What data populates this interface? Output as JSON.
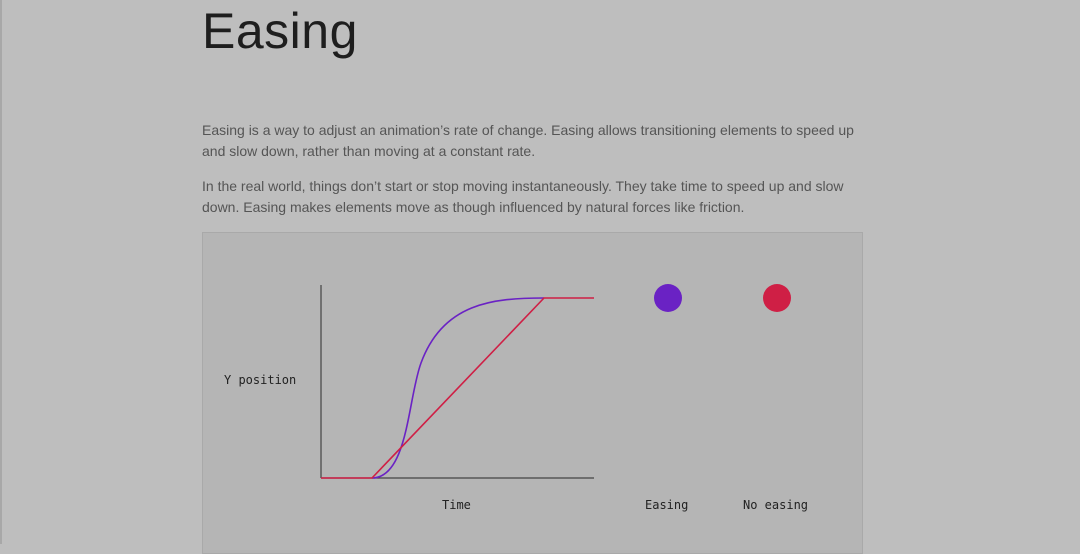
{
  "page": {
    "title": "Easing",
    "paragraphs": [
      "Easing is a way to adjust an animation’s rate of change. Easing allows transitioning elements to speed up and slow down, rather than moving at a constant rate.",
      "In the real world, things don’t start or stop moving instantaneously. They take time to speed up and slow down. Easing makes elements move as though influenced by natural forces like friction."
    ]
  },
  "demo": {
    "y_label": "Y position",
    "x_label": "Time",
    "easing_label": "Easing",
    "no_easing_label": "No easing",
    "colors": {
      "easing": "#6a22c4",
      "no_easing": "#cf1f45",
      "axis": "#444444"
    }
  }
}
